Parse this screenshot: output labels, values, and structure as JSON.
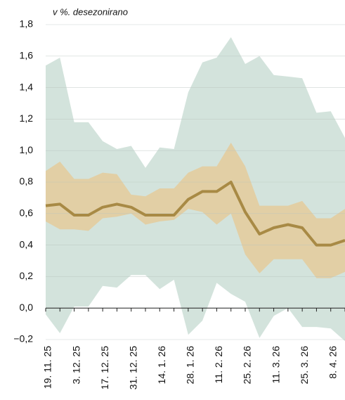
{
  "chart_data": {
    "type": "line",
    "annotation": "v %. desezonirano",
    "categories": [
      "19. 11. 25",
      null,
      "3. 12. 25",
      null,
      "17. 12. 25",
      null,
      "31. 12. 25",
      null,
      "14. 1. 26",
      null,
      "28. 1. 26",
      null,
      "11. 2. 26",
      null,
      "25. 2. 26",
      null,
      "11. 3. 26",
      null,
      "25. 3. 26",
      null,
      "8. 4. 26",
      null
    ],
    "series": [
      {
        "color": "#a88a45",
        "values": [
          0.65,
          0.66,
          0.59,
          0.59,
          0.64,
          0.66,
          0.64,
          0.59,
          0.59,
          0.59,
          0.69,
          0.74,
          0.74,
          0.8,
          0.61,
          0.47,
          0.51,
          0.53,
          0.51,
          0.4,
          0.4,
          0.43
        ]
      }
    ],
    "bands": [
      {
        "color": "#d3e3dc",
        "upper": [
          1.54,
          1.59,
          1.18,
          1.18,
          1.06,
          1.01,
          1.03,
          0.89,
          1.02,
          1.01,
          1.37,
          1.56,
          1.59,
          1.72,
          1.55,
          1.6,
          1.48,
          1.47,
          1.46,
          1.24,
          1.25,
          1.08
        ],
        "lower": [
          -0.04,
          -0.16,
          0.01,
          0.01,
          0.14,
          0.13,
          0.21,
          0.21,
          0.12,
          0.18,
          -0.17,
          -0.08,
          0.16,
          0.09,
          0.04,
          -0.19,
          -0.05,
          0.0,
          -0.12,
          -0.12,
          -0.13,
          -0.21
        ]
      },
      {
        "color": "#e2cfa5",
        "upper": [
          0.87,
          0.93,
          0.82,
          0.82,
          0.86,
          0.85,
          0.72,
          0.71,
          0.76,
          0.76,
          0.86,
          0.9,
          0.9,
          1.05,
          0.9,
          0.65,
          0.65,
          0.65,
          0.68,
          0.57,
          0.57,
          0.63
        ],
        "lower": [
          0.55,
          0.5,
          0.5,
          0.49,
          0.57,
          0.58,
          0.6,
          0.53,
          0.55,
          0.56,
          0.63,
          0.61,
          0.53,
          0.6,
          0.34,
          0.22,
          0.31,
          0.31,
          0.31,
          0.19,
          0.19,
          0.23
        ]
      }
    ],
    "ylim": [
      -0.2,
      1.8
    ],
    "yticks": [
      {
        "value": -0.2,
        "label": "−0,2"
      },
      {
        "value": 0,
        "label": "0,0"
      },
      {
        "value": 0.2,
        "label": "0,2"
      },
      {
        "value": 0.4,
        "label": "0,4"
      },
      {
        "value": 0.6,
        "label": "0,6"
      },
      {
        "value": 0.8,
        "label": "0,8"
      },
      {
        "value": 1.0,
        "label": "1,0"
      },
      {
        "value": 1.2,
        "label": "1,2"
      },
      {
        "value": 1.4,
        "label": "1,4"
      },
      {
        "value": 1.6,
        "label": "1,6"
      },
      {
        "value": 1.8,
        "label": "1,8"
      }
    ],
    "grid": true
  }
}
